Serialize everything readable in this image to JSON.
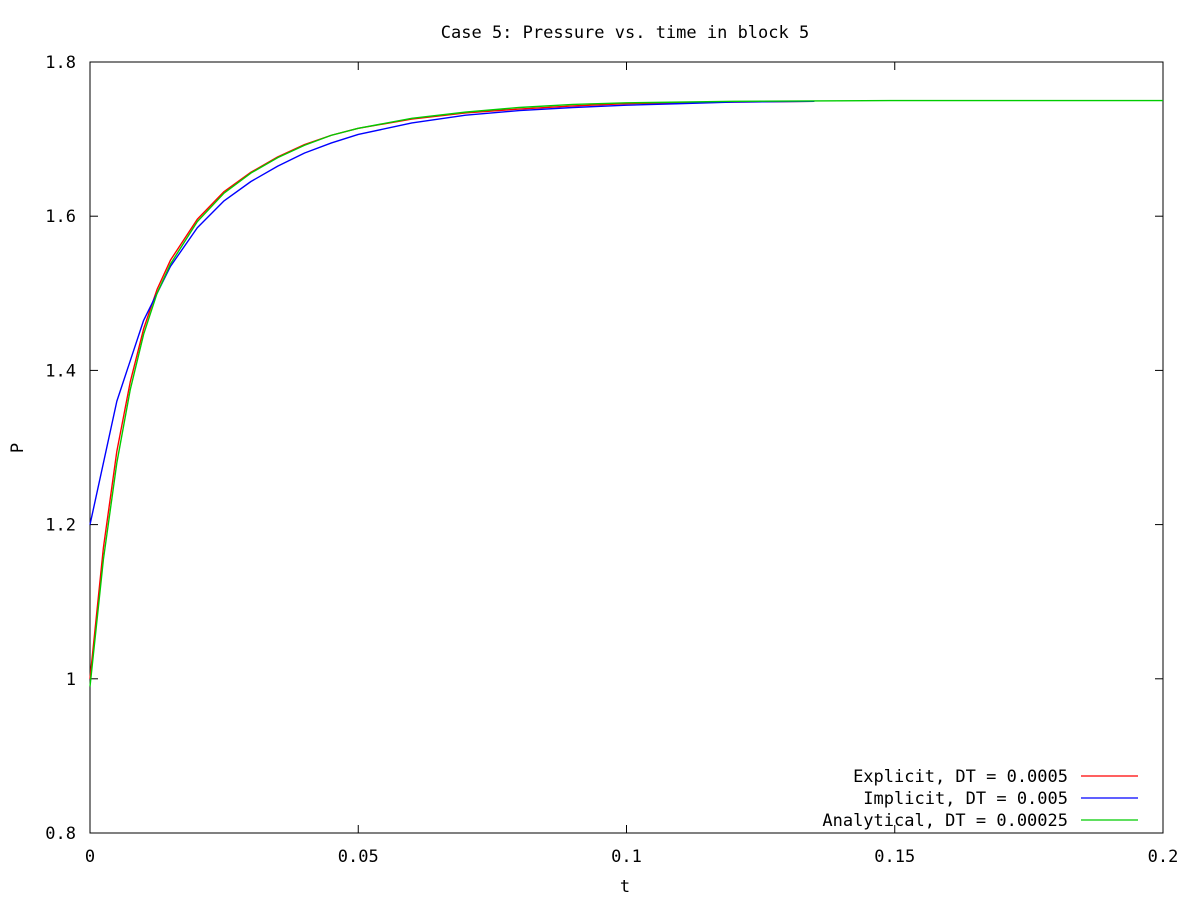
{
  "chart_data": {
    "type": "line",
    "title": "Case 5: Pressure vs. time in block 5",
    "xlabel": "t",
    "ylabel": "P",
    "xlim": [
      0,
      0.2
    ],
    "ylim": [
      0.8,
      1.8
    ],
    "xticks": [
      0,
      0.05,
      0.1,
      0.15,
      0.2
    ],
    "xtick_labels": [
      "0",
      "0.05",
      "0.1",
      "0.15",
      "0.2"
    ],
    "yticks": [
      0.8,
      1.0,
      1.2,
      1.4,
      1.6,
      1.8
    ],
    "ytick_labels": [
      "0.8",
      "1",
      "1.2",
      "1.4",
      "1.6",
      "1.8"
    ],
    "grid": false,
    "legend_position": "bottom-right",
    "series": [
      {
        "name": "Explicit, DT = 0.0005",
        "color": "#ff0000",
        "x": [
          0,
          0.0025,
          0.005,
          0.0075,
          0.01,
          0.0125,
          0.015,
          0.02,
          0.025,
          0.03,
          0.035,
          0.04,
          0.045,
          0.05,
          0.06,
          0.07,
          0.08,
          0.09,
          0.1,
          0.12,
          0.135
        ],
        "y": [
          1.0,
          1.17,
          1.295,
          1.385,
          1.454,
          1.505,
          1.543,
          1.596,
          1.632,
          1.657,
          1.677,
          1.693,
          1.705,
          1.714,
          1.726,
          1.734,
          1.739,
          1.743,
          1.746,
          1.748,
          1.749
        ]
      },
      {
        "name": "Implicit, DT = 0.005",
        "color": "#0000ff",
        "x": [
          0,
          0.005,
          0.01,
          0.015,
          0.02,
          0.025,
          0.03,
          0.035,
          0.04,
          0.045,
          0.05,
          0.06,
          0.07,
          0.08,
          0.09,
          0.1,
          0.11,
          0.12,
          0.135
        ],
        "y": [
          1.2,
          1.36,
          1.465,
          1.535,
          1.585,
          1.62,
          1.645,
          1.665,
          1.682,
          1.695,
          1.706,
          1.721,
          1.731,
          1.737,
          1.741,
          1.744,
          1.746,
          1.748,
          1.749
        ]
      },
      {
        "name": "Analytical, DT = 0.00025",
        "color": "#00cc00",
        "x": [
          0,
          0.0025,
          0.005,
          0.0075,
          0.01,
          0.0125,
          0.015,
          0.02,
          0.025,
          0.03,
          0.035,
          0.04,
          0.045,
          0.05,
          0.06,
          0.07,
          0.08,
          0.09,
          0.1,
          0.12,
          0.15,
          0.2
        ],
        "y": [
          0.99,
          1.155,
          1.28,
          1.375,
          1.447,
          1.5,
          1.538,
          1.593,
          1.63,
          1.656,
          1.676,
          1.692,
          1.705,
          1.714,
          1.727,
          1.735,
          1.741,
          1.745,
          1.747,
          1.749,
          1.75,
          1.75
        ]
      }
    ]
  }
}
